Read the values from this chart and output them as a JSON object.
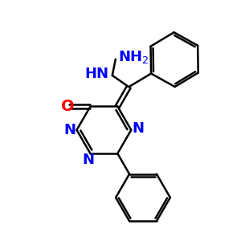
{
  "bg_color": "#ffffff",
  "bond_color": "#000000",
  "n_color": "#0000ff",
  "o_color": "#ff0000",
  "lw": 1.8,
  "fs": 13,
  "figsize": [
    3.0,
    3.0
  ],
  "dpi": 100,
  "xlim": [
    0,
    10
  ],
  "ylim": [
    0,
    10
  ]
}
